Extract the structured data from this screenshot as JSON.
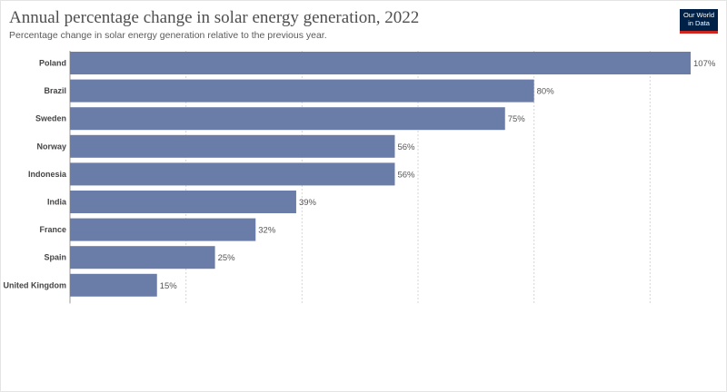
{
  "header": {
    "title": "Annual percentage change in solar energy generation, 2022",
    "subtitle": "Percentage change in solar energy generation relative to the previous year.",
    "logo_line1": "Our World",
    "logo_line2": "in Data"
  },
  "colors": {
    "bar": "#6a7ca8",
    "grid": "#d5d5d5",
    "axis": "#999999"
  },
  "chart_data": {
    "type": "bar",
    "orientation": "horizontal",
    "title": "Annual percentage change in solar energy generation, 2022",
    "subtitle": "Percentage change in solar energy generation relative to the previous year.",
    "categories": [
      "Poland",
      "Brazil",
      "Sweden",
      "Norway",
      "Indonesia",
      "India",
      "France",
      "Spain",
      "United Kingdom"
    ],
    "values": [
      107,
      80,
      75,
      56,
      56,
      39,
      32,
      25,
      15
    ],
    "value_labels": [
      "107%",
      "80%",
      "75%",
      "56%",
      "56%",
      "39%",
      "32%",
      "25%",
      "15%"
    ],
    "unit": "%",
    "xlim": [
      0,
      107
    ],
    "grid": true,
    "grid_values": [
      0,
      20,
      40,
      60,
      80,
      100
    ]
  }
}
